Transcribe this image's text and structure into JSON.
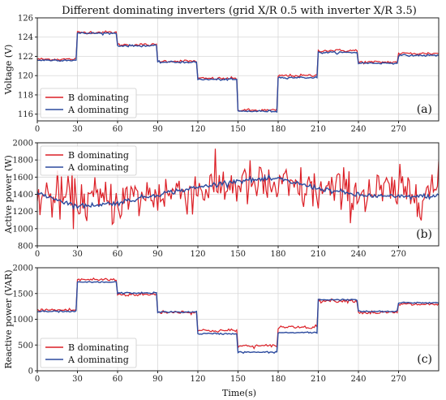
{
  "title": "Different dominating inverters (grid X/R 0.5 with inverter X/R 3.5)",
  "xlabel": "Time(s)",
  "colors": {
    "B": "#dc1f26",
    "A": "#2b4a9e"
  },
  "chart_data": [
    {
      "type": "line",
      "panel": "(a)",
      "ylabel": "Voltage (V)",
      "xlim": [
        0,
        300
      ],
      "ylim": [
        115.3,
        126
      ],
      "xticks": [
        0,
        30,
        60,
        90,
        120,
        150,
        180,
        210,
        240,
        270
      ],
      "yticks": [
        116,
        118,
        120,
        122,
        124,
        126
      ],
      "legend_position": "lower-left",
      "series": [
        {
          "name": "B dominating",
          "kind": "steps",
          "noise": 0.12,
          "levels": [
            121.7,
            124.5,
            123.2,
            121.5,
            119.7,
            116.4,
            120.0,
            122.6,
            121.4,
            122.3
          ]
        },
        {
          "name": "A dominating",
          "kind": "steps",
          "noise": 0.08,
          "levels": [
            121.6,
            124.4,
            123.1,
            121.4,
            119.6,
            116.3,
            119.8,
            122.4,
            121.3,
            122.1
          ]
        }
      ]
    },
    {
      "type": "line",
      "panel": "(b)",
      "ylabel": "Active power (W)",
      "xlim": [
        0,
        300
      ],
      "ylim": [
        800,
        2000
      ],
      "xticks": [
        0,
        30,
        60,
        90,
        120,
        150,
        180,
        210,
        240,
        270
      ],
      "yticks": [
        800,
        1000,
        1200,
        1400,
        1600,
        1800,
        2000
      ],
      "legend_position": "top-left",
      "series": [
        {
          "name": "B dominating",
          "kind": "noisy",
          "noise": 170,
          "x": [
            0,
            30,
            60,
            90,
            120,
            150,
            180,
            210,
            240,
            270,
            300
          ],
          "y": [
            1380,
            1340,
            1320,
            1400,
            1460,
            1520,
            1480,
            1440,
            1420,
            1420,
            1460
          ]
        },
        {
          "name": "A dominating",
          "kind": "noisy",
          "noise": 18,
          "x": [
            0,
            30,
            60,
            90,
            120,
            150,
            180,
            210,
            240,
            270,
            300
          ],
          "y": [
            1420,
            1260,
            1300,
            1400,
            1480,
            1560,
            1580,
            1470,
            1390,
            1370,
            1380
          ]
        }
      ]
    },
    {
      "type": "line",
      "panel": "(c)",
      "ylabel": "Reactive power (VAR)",
      "xlim": [
        0,
        300
      ],
      "ylim": [
        0,
        2000
      ],
      "xticks": [
        0,
        30,
        60,
        90,
        120,
        150,
        180,
        210,
        240,
        270
      ],
      "yticks": [
        0,
        500,
        1000,
        1500,
        2000
      ],
      "legend_position": "lower-left",
      "series": [
        {
          "name": "B dominating",
          "kind": "steps",
          "noise": 28,
          "levels": [
            1180,
            1770,
            1480,
            1140,
            780,
            480,
            850,
            1360,
            1130,
            1290
          ]
        },
        {
          "name": "A dominating",
          "kind": "steps",
          "noise": 12,
          "levels": [
            1150,
            1720,
            1510,
            1140,
            720,
            360,
            740,
            1380,
            1150,
            1320
          ]
        }
      ]
    }
  ]
}
